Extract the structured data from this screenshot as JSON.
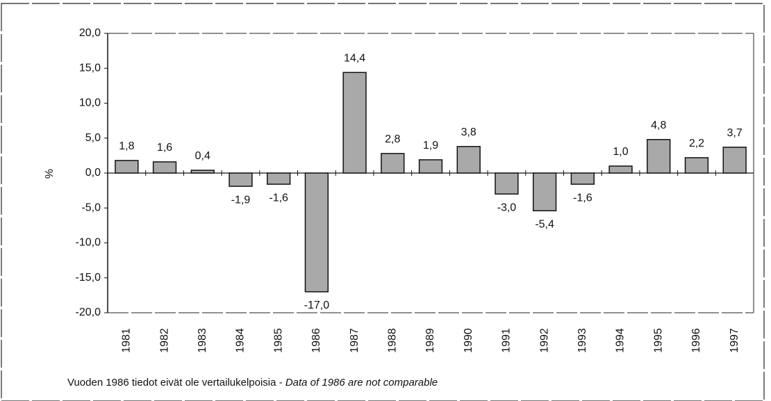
{
  "chart_data": {
    "type": "bar",
    "y_label": "%",
    "categories": [
      "1981",
      "1982",
      "1983",
      "1984",
      "1985",
      "1986",
      "1987",
      "1988",
      "1989",
      "1990",
      "1991",
      "1992",
      "1993",
      "1994",
      "1995",
      "1996",
      "1997"
    ],
    "values": [
      1.8,
      1.6,
      0.4,
      -1.9,
      -1.6,
      -17.0,
      14.4,
      2.8,
      1.9,
      3.8,
      -3.0,
      -5.4,
      -1.6,
      1.0,
      4.8,
      2.2,
      3.7
    ],
    "value_labels": [
      "1,8",
      "1,6",
      "0,4",
      "-1,9",
      "-1,6",
      "-17,0",
      "14,4",
      "2,8",
      "1,9",
      "3,8",
      "-3,0",
      "-5,4",
      "-1,6",
      "1,0",
      "4,8",
      "2,2",
      "3,7"
    ],
    "color": "#a9a9a9",
    "ylim": [
      -20,
      20
    ],
    "yticks": [
      {
        "value": -20,
        "label": "-20,0"
      },
      {
        "value": -15,
        "label": "-15,0"
      },
      {
        "value": -10,
        "label": "-10,0"
      },
      {
        "value": -5,
        "label": "-5,0"
      },
      {
        "value": 0,
        "label": "0,0"
      },
      {
        "value": 5,
        "label": "5,0"
      },
      {
        "value": 10,
        "label": "10,0"
      },
      {
        "value": 15,
        "label": "15,0"
      },
      {
        "value": 20,
        "label": "20,0"
      }
    ],
    "grid": false,
    "note": "Vuoden 1986 tiedot eivät ole vertailukelpoisia -",
    "note_en": "Data of 1986 are not comparable"
  }
}
